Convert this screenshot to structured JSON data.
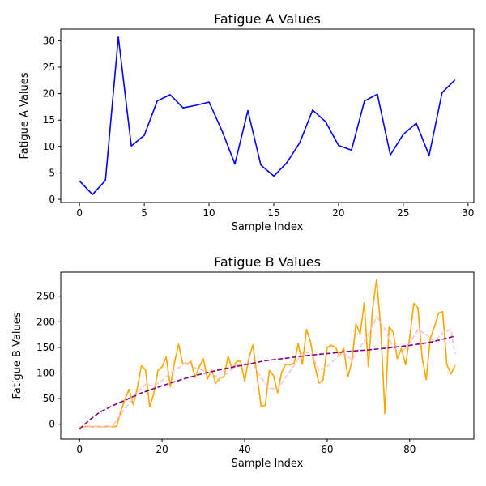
{
  "chart_data": [
    {
      "type": "line",
      "title": "Fatigue A Values",
      "xlabel": "Sample Index",
      "ylabel": "Fatigue A Values",
      "xlim": [
        -1.45,
        30.45
      ],
      "ylim": [
        -0.6,
        32.2
      ],
      "xticks": [
        0,
        5,
        10,
        15,
        20,
        25,
        30
      ],
      "yticks": [
        0,
        5,
        10,
        15,
        20,
        25,
        30
      ],
      "grid": false,
      "series": [
        {
          "color": "#0000ff",
          "style": "solid",
          "x": [
            0,
            1,
            2,
            3,
            4,
            5,
            6,
            7,
            8,
            9,
            10,
            11,
            12,
            13,
            14,
            15,
            16,
            17,
            18,
            19,
            20,
            21,
            22,
            23,
            24,
            25,
            26,
            27,
            28,
            29
          ],
          "values": [
            3.5,
            0.9,
            3.6,
            30.7,
            10.1,
            12.1,
            18.6,
            19.8,
            17.3,
            17.8,
            18.4,
            13.0,
            6.7,
            16.8,
            6.5,
            4.4,
            6.9,
            10.7,
            16.9,
            14.7,
            10.2,
            9.3,
            18.6,
            19.9,
            8.4,
            12.3,
            14.4,
            8.3,
            20.2,
            22.6
          ]
        }
      ]
    },
    {
      "type": "line",
      "title": "Fatigue B Values",
      "xlabel": "Sample Index",
      "ylabel": "Fatigue B Values",
      "xlim": [
        -4.55,
        95.55
      ],
      "ylim": [
        -29,
        297
      ],
      "xticks": [
        0,
        20,
        40,
        60,
        80
      ],
      "yticks": [
        0,
        50,
        100,
        150,
        200,
        250
      ],
      "grid": false,
      "series": [
        {
          "color": "#ffa500",
          "style": "solid",
          "x": [
            0,
            1,
            2,
            3,
            4,
            5,
            6,
            7,
            8,
            9,
            10,
            11,
            12,
            13,
            14,
            15,
            16,
            17,
            18,
            19,
            20,
            21,
            22,
            23,
            24,
            25,
            26,
            27,
            28,
            29,
            30,
            31,
            32,
            33,
            34,
            35,
            36,
            37,
            38,
            39,
            40,
            41,
            42,
            43,
            44,
            45,
            46,
            47,
            48,
            49,
            50,
            51,
            52,
            53,
            54,
            55,
            56,
            57,
            58,
            59,
            60,
            61,
            62,
            63,
            64,
            65,
            66,
            67,
            68,
            69,
            70,
            71,
            72,
            73,
            74,
            75,
            76,
            77,
            78,
            79,
            80,
            81,
            82,
            83,
            84,
            85,
            86,
            87,
            88,
            89,
            90,
            91
          ],
          "values": [
            -6,
            -5,
            -4,
            -5,
            -4,
            -5,
            -5,
            -4,
            -5,
            -4,
            25,
            48,
            68,
            38,
            70,
            114,
            106,
            34,
            60,
            105,
            112,
            131,
            73,
            120,
            156,
            118,
            117,
            123,
            91,
            112,
            128,
            88,
            106,
            80,
            90,
            92,
            133,
            107,
            122,
            124,
            84,
            128,
            155,
            95,
            35,
            37,
            105,
            95,
            61,
            102,
            117,
            116,
            119,
            157,
            117,
            185,
            160,
            114,
            80,
            86,
            150,
            154,
            150,
            133,
            148,
            92,
            122,
            196,
            176,
            237,
            112,
            225,
            283,
            186,
            21,
            190,
            180,
            128,
            148,
            116,
            169,
            236,
            227,
            130,
            87,
            168,
            190,
            217,
            220,
            117,
            98,
            115
          ]
        },
        {
          "color": "#ffc0cb",
          "style": "dashed",
          "x": [
            0,
            2,
            4,
            6,
            8,
            10,
            12,
            14,
            16,
            18,
            20,
            22,
            24,
            26,
            28,
            30,
            32,
            34,
            36,
            38,
            40,
            42,
            44,
            46,
            48,
            50,
            52,
            54,
            56,
            58,
            60,
            62,
            64,
            66,
            68,
            70,
            72,
            74,
            76,
            78,
            80,
            82,
            84,
            86,
            88,
            90,
            91
          ],
          "values": [
            -5,
            -5,
            -4,
            -5,
            -4,
            20,
            40,
            62,
            78,
            74,
            85,
            100,
            110,
            122,
            110,
            105,
            98,
            90,
            100,
            115,
            118,
            118,
            90,
            70,
            68,
            92,
            115,
            140,
            140,
            105,
            112,
            128,
            140,
            125,
            150,
            175,
            210,
            185,
            150,
            140,
            158,
            185,
            175,
            162,
            178,
            185,
            137
          ]
        },
        {
          "color": "#800080",
          "style": "dashed",
          "x": [
            0,
            1,
            3,
            5,
            8,
            10,
            15,
            20,
            25,
            30,
            35,
            40,
            45,
            50,
            55,
            60,
            65,
            70,
            75,
            80,
            85,
            91
          ],
          "values": [
            -10,
            -2,
            12,
            24,
            36,
            43,
            61,
            75,
            88,
            99,
            108,
            116,
            124,
            129,
            134,
            138,
            142,
            145,
            149,
            154,
            160,
            172
          ]
        }
      ]
    }
  ]
}
